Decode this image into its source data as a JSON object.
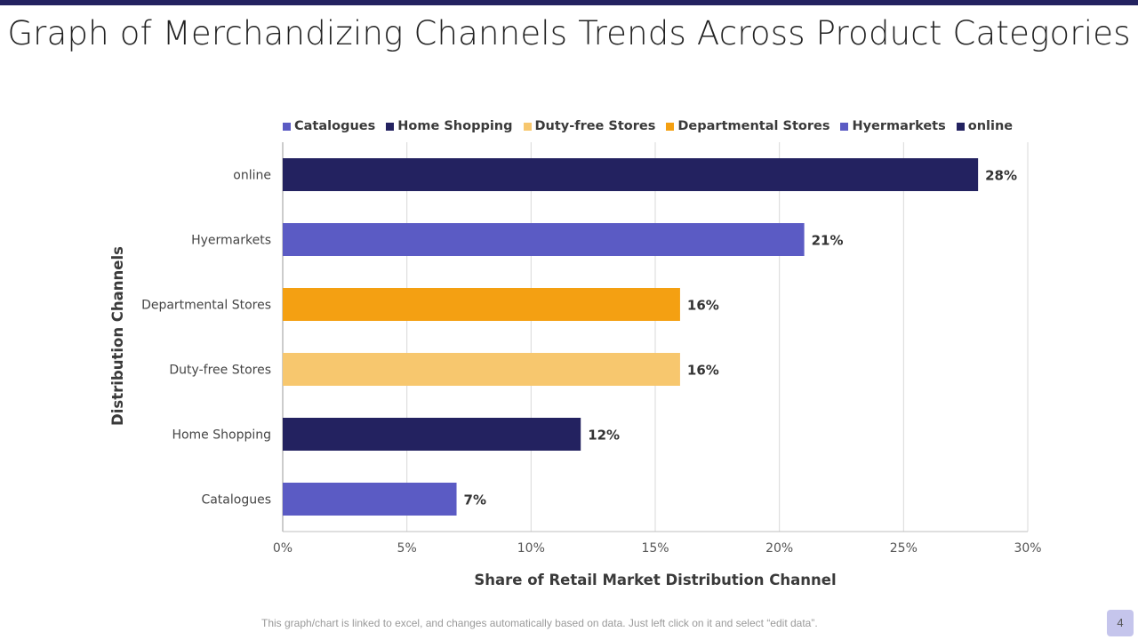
{
  "page": {
    "title": "Graph of Merchandizing Channels Trends Across Product Categories",
    "footer_note": "This graph/chart is linked to excel, and changes automatically based on data. Just left click on it and select “edit data”.",
    "page_number": "4"
  },
  "colors": {
    "top_bar": "#232260",
    "navy": "#232260",
    "violet": "#5b5bc4",
    "orange": "#f4a012",
    "light_orange": "#f7c76e"
  },
  "chart_data": {
    "type": "bar",
    "orientation": "horizontal",
    "title": "",
    "xlabel": "Share of Retail Market Distribution Channel",
    "ylabel": "Distribution Channels",
    "xlim": [
      0,
      30
    ],
    "x_ticks": [
      "0%",
      "5%",
      "10%",
      "15%",
      "20%",
      "25%",
      "30%"
    ],
    "x_tick_values": [
      0,
      5,
      10,
      15,
      20,
      25,
      30
    ],
    "grid": true,
    "legend_position": "top",
    "categories": [
      "Catalogues",
      "Home Shopping",
      "Duty-free Stores",
      "Departmental Stores",
      "Hyermarkets",
      "online"
    ],
    "values": [
      7,
      12,
      16,
      16,
      21,
      28
    ],
    "data_labels": [
      "7%",
      "12%",
      "16%",
      "16%",
      "21%",
      "28%"
    ],
    "bar_colors": [
      "#5b5bc4",
      "#232260",
      "#f7c76e",
      "#f4a012",
      "#5b5bc4",
      "#232260"
    ],
    "legend": [
      {
        "label": "Catalogues",
        "color": "#5b5bc4"
      },
      {
        "label": "Home Shopping",
        "color": "#232260"
      },
      {
        "label": "Duty-free Stores",
        "color": "#f7c76e"
      },
      {
        "label": "Departmental Stores",
        "color": "#f4a012"
      },
      {
        "label": "Hyermarkets",
        "color": "#5b5bc4"
      },
      {
        "label": "online",
        "color": "#232260"
      }
    ]
  }
}
